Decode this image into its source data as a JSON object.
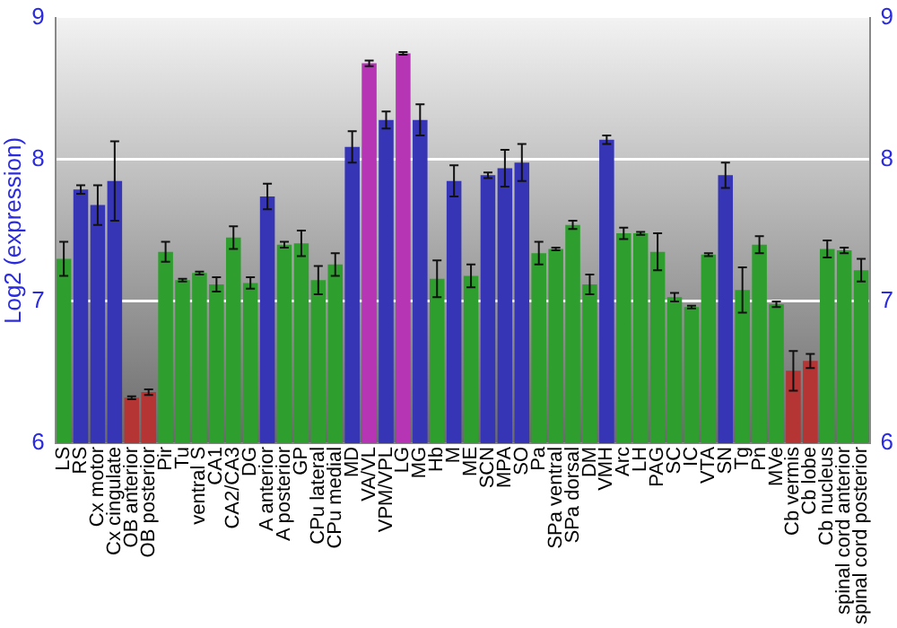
{
  "chart_data": {
    "type": "bar",
    "ylabel": "Log2 (expression)",
    "categories": [
      "LS",
      "RS",
      "Cx motor",
      "Cx cingulate",
      "OB anterior",
      "OB posterior",
      "Pir",
      "Tu",
      "ventral S",
      "CA1",
      "CA2/CA3",
      "DG",
      "A anterior",
      "A posterior",
      "GP",
      "CPu lateral",
      "CPu medial",
      "MD",
      "VA/VL",
      "VPM/VPL",
      "LG",
      "MG",
      "Hb",
      "M",
      "ME",
      "SCN",
      "MPA",
      "SO",
      "Pa",
      "SPa ventral",
      "SPa dorsal",
      "DM",
      "VMH",
      "Arc",
      "LH",
      "PAG",
      "SC",
      "IC",
      "VTA",
      "SN",
      "Tg",
      "Pn",
      "MVe",
      "Cb vermis",
      "Cb lobe",
      "Cb nucleus",
      "spinal cord anterior",
      "spinal cord posterior"
    ],
    "values": [
      7.3,
      7.79,
      7.68,
      7.85,
      6.32,
      6.36,
      7.35,
      7.15,
      7.2,
      7.12,
      7.45,
      7.13,
      7.74,
      7.4,
      7.41,
      7.15,
      7.26,
      8.09,
      8.68,
      8.28,
      8.75,
      8.28,
      7.16,
      7.85,
      7.18,
      7.89,
      7.94,
      7.98,
      7.34,
      7.37,
      7.54,
      7.12,
      8.14,
      7.48,
      7.48,
      7.35,
      7.03,
      6.96,
      7.33,
      7.89,
      7.08,
      7.4,
      6.98,
      6.51,
      6.58,
      7.37,
      7.36,
      7.22
    ],
    "errors": [
      0.12,
      0.03,
      0.14,
      0.28,
      0.01,
      0.02,
      0.07,
      0.01,
      0.01,
      0.05,
      0.08,
      0.04,
      0.09,
      0.02,
      0.09,
      0.1,
      0.08,
      0.11,
      0.02,
      0.06,
      0.01,
      0.11,
      0.13,
      0.11,
      0.08,
      0.02,
      0.13,
      0.13,
      0.08,
      0.01,
      0.03,
      0.07,
      0.03,
      0.04,
      0.01,
      0.13,
      0.03,
      0.01,
      0.01,
      0.09,
      0.16,
      0.06,
      0.02,
      0.14,
      0.05,
      0.06,
      0.02,
      0.08
    ],
    "colors": [
      "#2e9e2e",
      "#3535b5",
      "#3535b5",
      "#3535b5",
      "#b53535",
      "#b53535",
      "#2e9e2e",
      "#2e9e2e",
      "#2e9e2e",
      "#2e9e2e",
      "#2e9e2e",
      "#2e9e2e",
      "#3535b5",
      "#2e9e2e",
      "#2e9e2e",
      "#2e9e2e",
      "#2e9e2e",
      "#3535b5",
      "#b535b5",
      "#3535b5",
      "#b535b5",
      "#3535b5",
      "#2e9e2e",
      "#3535b5",
      "#2e9e2e",
      "#3535b5",
      "#3535b5",
      "#3535b5",
      "#2e9e2e",
      "#2e9e2e",
      "#2e9e2e",
      "#2e9e2e",
      "#3535b5",
      "#2e9e2e",
      "#2e9e2e",
      "#2e9e2e",
      "#2e9e2e",
      "#2e9e2e",
      "#2e9e2e",
      "#3535b5",
      "#2e9e2e",
      "#2e9e2e",
      "#2e9e2e",
      "#b53535",
      "#b53535",
      "#2e9e2e",
      "#2e9e2e",
      "#2e9e2e"
    ],
    "ylim": [
      6,
      9
    ],
    "yticks": [
      6,
      7,
      8,
      9
    ],
    "y2lim": [
      6,
      9
    ],
    "y2ticks": [
      6,
      7,
      8,
      9
    ],
    "grid": "y",
    "legend": false
  }
}
